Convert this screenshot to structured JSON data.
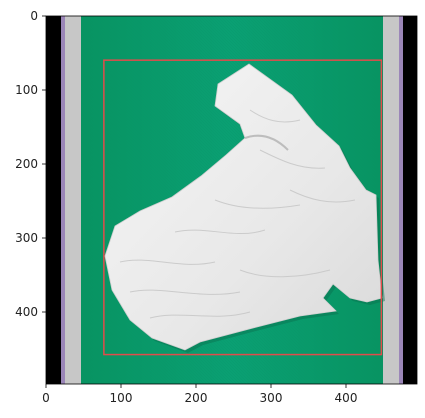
{
  "figure": {
    "axes": {
      "x_ticks": [
        "0",
        "100",
        "200",
        "300",
        "400"
      ],
      "y_ticks": [
        "0",
        "100",
        "200",
        "300",
        "400"
      ],
      "xlim": [
        0,
        500
      ],
      "ylim": [
        500,
        0
      ]
    },
    "image": {
      "description_name": "garment-on-green-mat",
      "background_color": "#0aa073",
      "left_edge_color": "#000000",
      "mat_frame_color": "#c9c9c9",
      "shirt_color": "#efefef"
    },
    "bounding_box": {
      "color": "#e24b4b",
      "x0": 78,
      "y0": 60,
      "x1": 452,
      "y1": 460
    }
  }
}
